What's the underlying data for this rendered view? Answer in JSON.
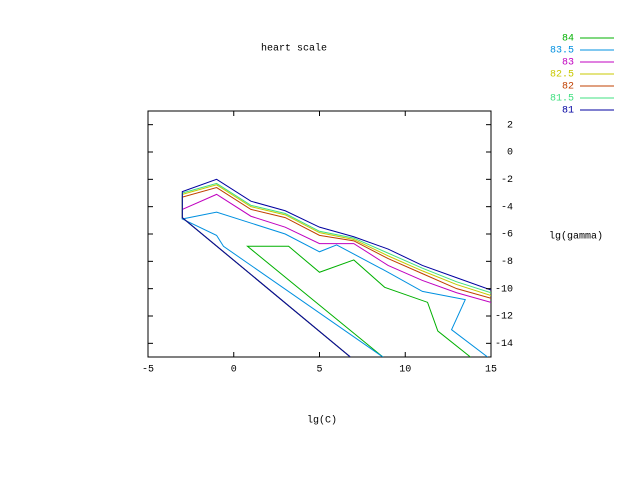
{
  "chart_data": {
    "type": "contour",
    "title": "heart scale",
    "x_label": "lg(C)",
    "y_label": "lg(gamma)",
    "xlim": [
      -5,
      15
    ],
    "xticks": [
      -5,
      0,
      5,
      10,
      15
    ],
    "ylim": [
      -15,
      3
    ],
    "yticks": [
      2,
      0,
      -2,
      -4,
      -6,
      -8,
      -10,
      -12,
      -14
    ],
    "series": [
      {
        "name": "84",
        "color": "#00b000",
        "x": [
          8.7,
          0.8,
          3.2,
          5,
          7,
          8.8,
          11.3,
          11.9,
          13.8
        ],
        "values": [
          -15,
          -6.9,
          -6.9,
          -8.8,
          -7.9,
          -9.9,
          -11,
          -13.1,
          -15
        ]
      },
      {
        "name": "83.5",
        "color": "#0090e0",
        "x": [
          8.7,
          -0.6,
          -1,
          -3,
          -1,
          1,
          3,
          5,
          6,
          9,
          11,
          13.5,
          12.7,
          14.8
        ],
        "values": [
          -15,
          -6.9,
          -6.1,
          -4.9,
          -4.4,
          -5.2,
          -6,
          -7.3,
          -6.8,
          -8.8,
          -10.2,
          -10.8,
          -13,
          -15
        ]
      },
      {
        "name": "83",
        "color": "#c000c0",
        "x": [
          6.8,
          -3,
          -3,
          -1,
          1,
          3,
          5,
          7,
          9,
          11,
          13,
          15
        ],
        "values": [
          -15,
          -4.8,
          -4.2,
          -3.1,
          -4.7,
          -5.5,
          -6.7,
          -6.7,
          -8.3,
          -9.4,
          -10.3,
          -11
        ]
      },
      {
        "name": "82.5",
        "color": "#c8c800",
        "x": [
          6.8,
          -3,
          -3,
          -1,
          1,
          3,
          5,
          7,
          9,
          11,
          13,
          15
        ],
        "values": [
          -15,
          -4.8,
          -3.1,
          -2.4,
          -4,
          -4.6,
          -5.9,
          -6.4,
          -7.6,
          -8.7,
          -9.7,
          -10.5
        ]
      },
      {
        "name": "82",
        "color": "#c04000",
        "x": [
          6.8,
          -3,
          -3,
          -1,
          1,
          3,
          5,
          7,
          9,
          11,
          13,
          15
        ],
        "values": [
          -15,
          -4.8,
          -3.3,
          -2.6,
          -4.2,
          -4.8,
          -6.1,
          -6.5,
          -7.8,
          -8.9,
          -10,
          -10.7
        ]
      },
      {
        "name": "81.5",
        "color": "#40e080",
        "x": [
          6.8,
          -3,
          -3,
          -1,
          1,
          3,
          5,
          7,
          9,
          11,
          13,
          15
        ],
        "values": [
          -15,
          -4.8,
          -3,
          -2.3,
          -3.9,
          -4.5,
          -5.8,
          -6.3,
          -7.4,
          -8.5,
          -9.5,
          -10.3
        ]
      },
      {
        "name": "81",
        "color": "#0000a0",
        "x": [
          6.8,
          -3,
          -3,
          -1,
          1,
          3,
          5,
          7,
          9,
          11,
          13,
          15
        ],
        "values": [
          -15,
          -4.8,
          -2.9,
          -2,
          -3.6,
          -4.3,
          -5.5,
          -6.2,
          -7.1,
          -8.3,
          -9.2,
          -10.1
        ]
      }
    ]
  }
}
